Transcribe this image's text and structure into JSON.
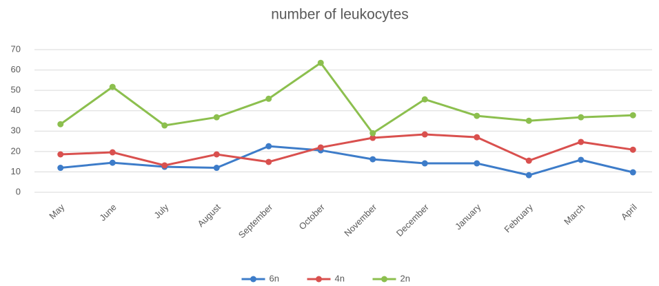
{
  "chart_data": {
    "type": "line",
    "title": "number of leukocytes",
    "categories": [
      "May",
      "June",
      "July",
      "August",
      "September",
      "October",
      "November",
      "December",
      "January",
      "February",
      "March",
      "April"
    ],
    "series": [
      {
        "name": "6n",
        "color": "#3d7cc9",
        "values": [
          12,
          14.5,
          12.5,
          12,
          22.6,
          20.6,
          16.2,
          14.2,
          14.2,
          8.4,
          15.9,
          9.8
        ]
      },
      {
        "name": "4n",
        "color": "#d9504e",
        "values": [
          18.6,
          19.6,
          13.2,
          18.6,
          14.9,
          22,
          26.7,
          28.4,
          27,
          15.5,
          24.7,
          20.9
        ]
      },
      {
        "name": "2n",
        "color": "#8cbf4e",
        "values": [
          33.4,
          51.7,
          32.8,
          36.8,
          45.9,
          63.5,
          29,
          45.6,
          37.5,
          35.1,
          36.8,
          37.8
        ]
      }
    ],
    "ylim": [
      0,
      70
    ],
    "yticks": [
      0,
      10,
      20,
      30,
      40,
      50,
      60,
      70
    ],
    "grid": true,
    "legend": "bottom"
  }
}
